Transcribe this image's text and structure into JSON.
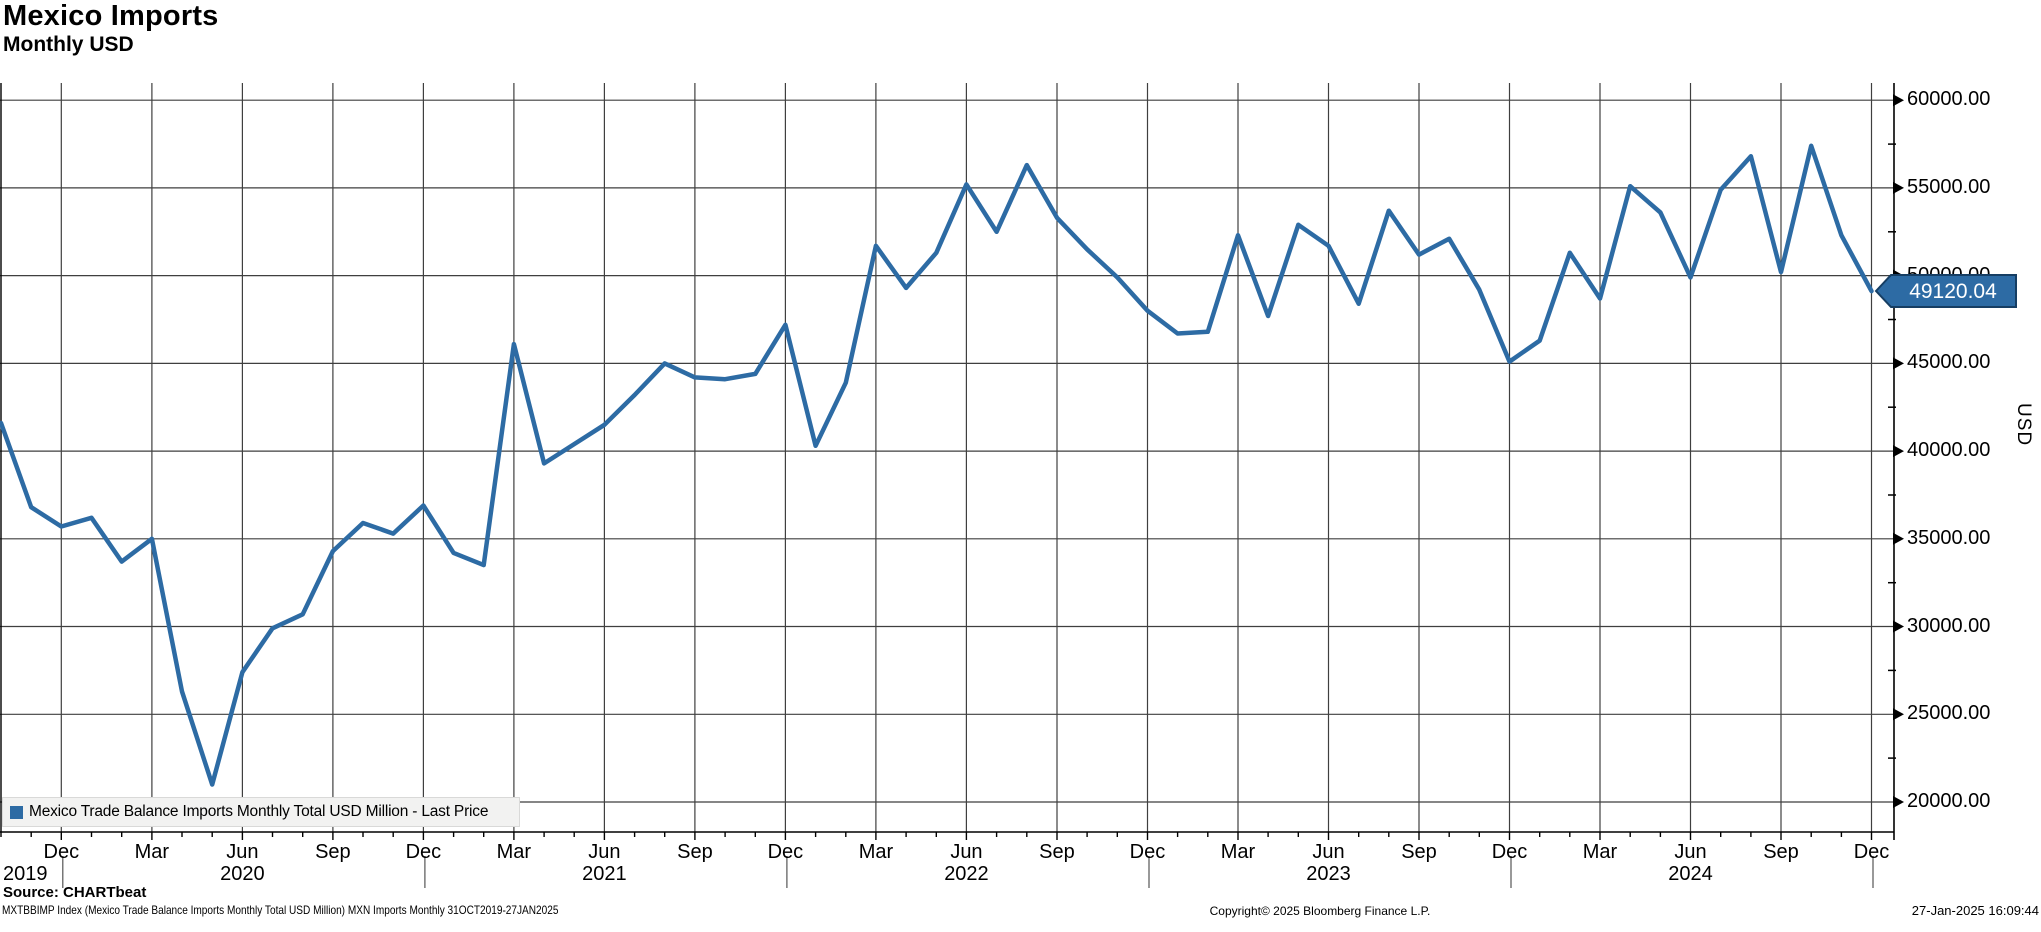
{
  "header": {
    "title": "Mexico Imports",
    "subtitle": "Monthly USD"
  },
  "chart_data": {
    "type": "line",
    "title": "Mexico Imports",
    "subtitle": "Monthly USD",
    "ylabel": "USD",
    "ylim": [
      18300,
      60700
    ],
    "grid": true,
    "legend_position": "bottom-left",
    "x": [
      "2019-10",
      "2019-11",
      "2019-12",
      "2020-01",
      "2020-02",
      "2020-03",
      "2020-04",
      "2020-05",
      "2020-06",
      "2020-07",
      "2020-08",
      "2020-09",
      "2020-10",
      "2020-11",
      "2020-12",
      "2021-01",
      "2021-02",
      "2021-03",
      "2021-04",
      "2021-05",
      "2021-06",
      "2021-07",
      "2021-08",
      "2021-09",
      "2021-10",
      "2021-11",
      "2021-12",
      "2022-01",
      "2022-02",
      "2022-03",
      "2022-04",
      "2022-05",
      "2022-06",
      "2022-07",
      "2022-08",
      "2022-09",
      "2022-10",
      "2022-11",
      "2022-12",
      "2023-01",
      "2023-02",
      "2023-03",
      "2023-04",
      "2023-05",
      "2023-06",
      "2023-07",
      "2023-08",
      "2023-09",
      "2023-10",
      "2023-11",
      "2023-12",
      "2024-01",
      "2024-02",
      "2024-03",
      "2024-04",
      "2024-05",
      "2024-06",
      "2024-07",
      "2024-08",
      "2024-09",
      "2024-10",
      "2024-11",
      "2024-12"
    ],
    "series": [
      {
        "name": "Mexico Trade Balance Imports Monthly Total USD Million - Last Price",
        "color": "#2d6ba4",
        "values": [
          41600,
          36800,
          35700,
          36200,
          33700,
          35000,
          26300,
          21000,
          27400,
          29900,
          30700,
          34300,
          35900,
          35300,
          36900,
          34200,
          33500,
          46100,
          39300,
          40400,
          41500,
          43200,
          45000,
          44200,
          44100,
          44400,
          47200,
          40300,
          43900,
          51700,
          49300,
          51300,
          55200,
          52500,
          56300,
          53300,
          51500,
          49900,
          48000,
          46700,
          46800,
          52300,
          47700,
          52900,
          51700,
          48400,
          53700,
          51200,
          52100,
          49200,
          45100,
          46300,
          51300,
          48700,
          55100,
          53600,
          49900,
          54900,
          56800,
          50200,
          57400,
          52300,
          49120.04
        ]
      }
    ],
    "last_price": 49120.04,
    "date_range": "31OCT2019-27JAN2025"
  },
  "y_axis": {
    "title": "USD",
    "minor_step": 2500,
    "tick_labels": [
      {
        "value": 60000,
        "label": "60000.00"
      },
      {
        "value": 55000,
        "label": "55000.00"
      },
      {
        "value": 50000,
        "label": "50000.00"
      },
      {
        "value": 45000,
        "label": "45000.00"
      },
      {
        "value": 40000,
        "label": "40000.00"
      },
      {
        "value": 35000,
        "label": "35000.00"
      },
      {
        "value": 30000,
        "label": "30000.00"
      },
      {
        "value": 25000,
        "label": "25000.00"
      },
      {
        "value": 20000,
        "label": "20000.00"
      }
    ]
  },
  "x_axis": {
    "tick_labels": [
      {
        "i": 2,
        "label": "Dec"
      },
      {
        "i": 5,
        "label": "Mar"
      },
      {
        "i": 8,
        "label": "Jun"
      },
      {
        "i": 11,
        "label": "Sep"
      },
      {
        "i": 14,
        "label": "Dec"
      },
      {
        "i": 17,
        "label": "Mar"
      },
      {
        "i": 20,
        "label": "Jun"
      },
      {
        "i": 23,
        "label": "Sep"
      },
      {
        "i": 26,
        "label": "Dec"
      },
      {
        "i": 29,
        "label": "Mar"
      },
      {
        "i": 32,
        "label": "Jun"
      },
      {
        "i": 35,
        "label": "Sep"
      },
      {
        "i": 38,
        "label": "Dec"
      },
      {
        "i": 41,
        "label": "Mar"
      },
      {
        "i": 44,
        "label": "Jun"
      },
      {
        "i": 47,
        "label": "Sep"
      },
      {
        "i": 50,
        "label": "Dec"
      },
      {
        "i": 53,
        "label": "Mar"
      },
      {
        "i": 56,
        "label": "Jun"
      },
      {
        "i": 59,
        "label": "Sep"
      },
      {
        "i": 62,
        "label": "Dec"
      }
    ],
    "year_labels": [
      {
        "i": 0,
        "label": "2019",
        "edge": true
      },
      {
        "i": 8,
        "label": "2020"
      },
      {
        "i": 20,
        "label": "2021"
      },
      {
        "i": 32,
        "label": "2022"
      },
      {
        "i": 44,
        "label": "2023"
      },
      {
        "i": 56,
        "label": "2024"
      }
    ],
    "year_separator_indices": [
      2,
      14,
      26,
      38,
      50,
      62
    ]
  },
  "legend": {
    "label": "Mexico Trade Balance Imports Monthly Total USD Million - Last Price"
  },
  "badge": {
    "text": "49120.04"
  },
  "source": {
    "label": "Source: CHARTbeat"
  },
  "footer": {
    "left": "MXTBBIMP Index (Mexico Trade Balance Imports Monthly Total USD Million) MXN Imports  Monthly 31OCT2019-27JAN2025",
    "center": "Copyright© 2025 Bloomberg Finance L.P.",
    "right": "27-Jan-2025 16:09:44"
  },
  "colors": {
    "line": "#2d6ba4",
    "badge_fill": "#2d6ba4",
    "badge_border": "#163e63",
    "badge_text": "#ffffff",
    "grid": "#3f3f3f",
    "axis": "#000000",
    "legend_bg": "#f2f2f1"
  }
}
